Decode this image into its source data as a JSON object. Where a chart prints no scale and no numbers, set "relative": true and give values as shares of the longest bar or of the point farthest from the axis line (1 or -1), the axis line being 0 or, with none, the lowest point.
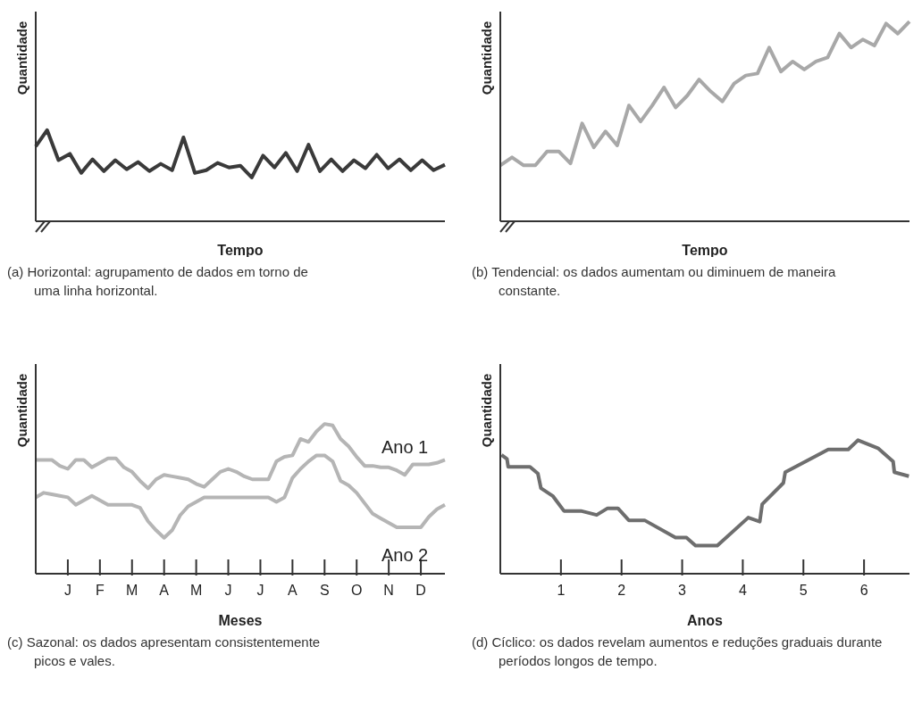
{
  "chart_data": [
    {
      "type": "line",
      "relative": true,
      "ylabel": "Quantidade",
      "xlabel": "Tempo",
      "marker": "none",
      "categories": [
        null,
        null,
        null,
        null,
        null,
        null,
        null,
        null,
        null,
        null,
        null,
        null,
        null,
        null,
        null,
        null,
        null,
        null,
        null,
        null,
        null,
        null,
        null,
        null,
        null,
        null,
        null,
        null,
        null,
        null,
        null,
        null,
        null,
        null,
        null,
        null,
        null
      ],
      "series": [
        {
          "color": "#3a3a3a",
          "values": [
            0.82,
            1.0,
            0.67,
            0.74,
            0.53,
            0.68,
            0.55,
            0.67,
            0.57,
            0.65,
            0.55,
            0.63,
            0.56,
            0.92,
            0.53,
            0.56,
            0.64,
            0.59,
            0.61,
            0.48,
            0.72,
            0.59,
            0.75,
            0.55,
            0.84,
            0.55,
            0.68,
            0.55,
            0.67,
            0.58,
            0.73,
            0.58,
            0.68,
            0.56,
            0.67,
            0.56,
            0.62
          ]
        }
      ],
      "annotations": [
        "(a) Horizontal: agrupamento de dados em torno de uma linha horizontal."
      ]
    },
    {
      "type": "line",
      "relative": true,
      "ylabel": "Quantidade",
      "xlabel": "Tempo",
      "marker": "none",
      "categories": [
        null,
        null,
        null,
        null,
        null,
        null,
        null,
        null,
        null,
        null,
        null,
        null,
        null,
        null,
        null,
        null,
        null,
        null,
        null,
        null,
        null,
        null,
        null,
        null,
        null,
        null,
        null,
        null,
        null,
        null,
        null,
        null,
        null,
        null,
        null,
        null
      ],
      "series": [
        {
          "color": "#a8a8a8",
          "values": [
            0.28,
            0.32,
            0.28,
            0.28,
            0.35,
            0.35,
            0.29,
            0.49,
            0.37,
            0.45,
            0.38,
            0.58,
            0.5,
            0.58,
            0.67,
            0.57,
            0.63,
            0.71,
            0.65,
            0.6,
            0.69,
            0.73,
            0.74,
            0.87,
            0.75,
            0.8,
            0.76,
            0.8,
            0.82,
            0.94,
            0.87,
            0.91,
            0.88,
            0.99,
            0.94,
            1.0
          ]
        }
      ],
      "annotations": [
        "(b) Tendencial: os dados aumentam ou diminuem de maneira constante."
      ]
    },
    {
      "type": "line",
      "relative": true,
      "ylabel": "Quantidade",
      "xlabel": "Meses",
      "marker": "none",
      "categories": [
        null,
        null,
        null,
        null,
        "J",
        null,
        null,
        null,
        "F",
        null,
        null,
        null,
        "M",
        null,
        null,
        null,
        "A",
        null,
        null,
        null,
        "M",
        null,
        null,
        null,
        "J",
        null,
        null,
        null,
        "J",
        null,
        null,
        null,
        "A",
        null,
        null,
        null,
        "S",
        null,
        null,
        null,
        "O",
        null,
        null,
        null,
        "N",
        null,
        null,
        null,
        "D",
        null,
        null,
        null
      ],
      "series": [
        {
          "name": "Ano 1",
          "color": "#b5b5b5",
          "values": [
            0.76,
            0.76,
            0.76,
            0.72,
            0.7,
            0.76,
            0.76,
            0.71,
            0.74,
            0.77,
            0.77,
            0.71,
            0.68,
            0.62,
            0.57,
            0.63,
            0.66,
            0.65,
            0.64,
            0.63,
            0.6,
            0.58,
            0.63,
            0.68,
            0.7,
            0.68,
            0.65,
            0.63,
            0.63,
            0.63,
            0.75,
            0.78,
            0.79,
            0.9,
            0.88,
            0.95,
            1.0,
            0.99,
            0.9,
            0.85,
            0.78,
            0.72,
            0.72,
            0.71,
            0.71,
            0.69,
            0.66,
            0.73,
            0.73,
            0.73,
            0.74,
            0.76
          ]
        },
        {
          "name": "Ano 2",
          "color": "#b5b5b5",
          "values": [
            0.51,
            0.54,
            0.53,
            0.52,
            0.51,
            0.46,
            0.49,
            0.52,
            0.49,
            0.46,
            0.46,
            0.46,
            0.46,
            0.44,
            0.35,
            0.29,
            0.24,
            0.29,
            0.39,
            0.45,
            0.48,
            0.51,
            0.51,
            0.51,
            0.51,
            0.51,
            0.51,
            0.51,
            0.51,
            0.51,
            0.48,
            0.51,
            0.64,
            0.7,
            0.75,
            0.79,
            0.79,
            0.75,
            0.62,
            0.59,
            0.54,
            0.47,
            0.4,
            0.37,
            0.34,
            0.31,
            0.31,
            0.31,
            0.31,
            0.38,
            0.43,
            0.46
          ]
        }
      ],
      "annotations": [
        "(c) Sazonal: os dados apresentam consistentemente picos e vales."
      ]
    },
    {
      "type": "line",
      "relative": true,
      "ylabel": "Quantidade",
      "xlabel": "Anos",
      "marker": "none",
      "xlim": [
        0,
        6.75
      ],
      "xticks": [
        1,
        2,
        3,
        4,
        5,
        6
      ],
      "x": [
        0.02,
        0.11,
        0.13,
        0.49,
        0.62,
        0.67,
        0.87,
        1.05,
        1.33,
        1.59,
        1.77,
        1.94,
        2.12,
        2.38,
        2.89,
        3.07,
        3.22,
        3.58,
        4.09,
        4.28,
        4.32,
        4.67,
        4.7,
        5.41,
        5.74,
        5.9,
        6.23,
        6.48,
        6.5,
        6.74
      ],
      "series": [
        {
          "color": "#6e6e6e",
          "values": [
            0.89,
            0.86,
            0.8,
            0.8,
            0.75,
            0.64,
            0.58,
            0.47,
            0.47,
            0.44,
            0.49,
            0.49,
            0.4,
            0.4,
            0.27,
            0.27,
            0.21,
            0.21,
            0.42,
            0.39,
            0.52,
            0.68,
            0.76,
            0.93,
            0.93,
            1.0,
            0.94,
            0.84,
            0.76,
            0.73
          ]
        }
      ],
      "annotations": [
        "(d) Cíclico: os dados revelam aumentos e reduções graduais durante períodos longos de tempo."
      ]
    }
  ]
}
